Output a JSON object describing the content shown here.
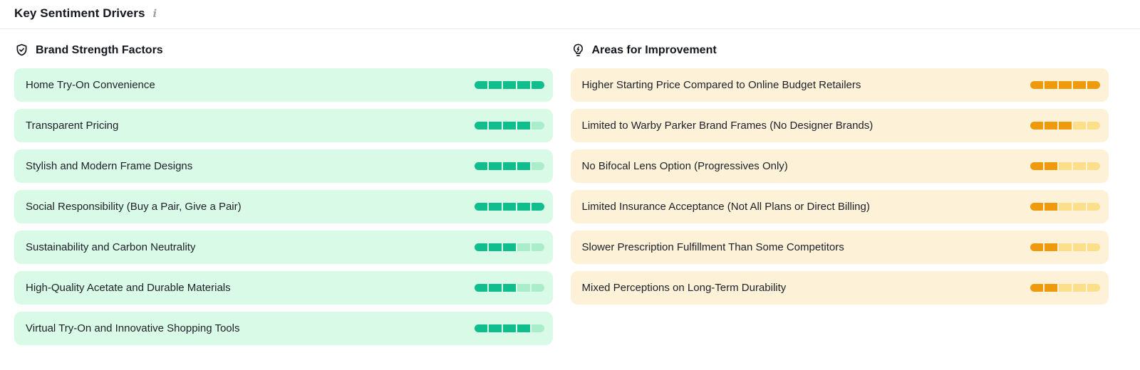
{
  "page": {
    "title": "Key Sentiment Drivers",
    "info_icon_glyph": "i"
  },
  "theme": {
    "text_color": "#1d2029",
    "divider_color": "#e7e9ee",
    "info_icon_color": "#9aa2ad"
  },
  "score_scale": {
    "max_segments": 5
  },
  "strengths": {
    "heading": "Brand Strength Factors",
    "icon": "shield-check-icon",
    "colors": {
      "row_bg": "#d9fae6",
      "segment_filled": "#10bd8c",
      "segment_empty": "#a9edcb"
    },
    "items": [
      {
        "label": "Home Try-On Convenience",
        "score": 5
      },
      {
        "label": "Transparent Pricing",
        "score": 4
      },
      {
        "label": "Stylish and Modern Frame Designs",
        "score": 4
      },
      {
        "label": "Social Responsibility (Buy a Pair, Give a Pair)",
        "score": 5
      },
      {
        "label": "Sustainability and Carbon Neutrality",
        "score": 3
      },
      {
        "label": "High-Quality Acetate and Durable Materials",
        "score": 3
      },
      {
        "label": "Virtual Try-On and Innovative Shopping Tools",
        "score": 4
      }
    ]
  },
  "improvements": {
    "heading": "Areas for Improvement",
    "icon": "lightbulb-bolt-icon",
    "colors": {
      "row_bg": "#fdf1d8",
      "segment_filled": "#ef9a0d",
      "segment_empty": "#fbdf8a"
    },
    "items": [
      {
        "label": "Higher Starting Price Compared to Online Budget Retailers",
        "score": 5
      },
      {
        "label": "Limited to Warby Parker Brand Frames (No Designer Brands)",
        "score": 3
      },
      {
        "label": "No Bifocal Lens Option (Progressives Only)",
        "score": 2
      },
      {
        "label": "Limited Insurance Acceptance (Not All Plans or Direct Billing)",
        "score": 2
      },
      {
        "label": "Slower Prescription Fulfillment Than Some Competitors",
        "score": 2
      },
      {
        "label": "Mixed Perceptions on Long-Term Durability",
        "score": 2
      }
    ]
  }
}
